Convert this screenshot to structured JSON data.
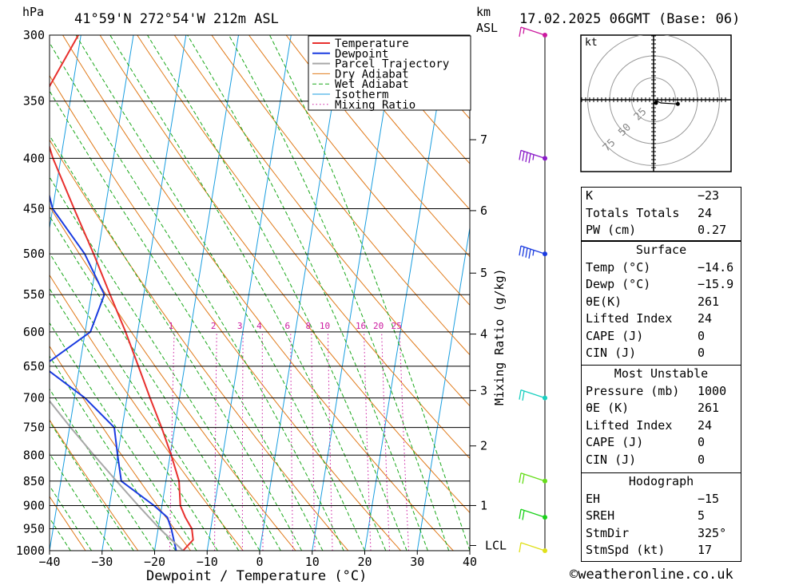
{
  "header": {
    "hpa_label": "hPa",
    "location": "41°59'N  272°54'W  212m  ASL",
    "km_label": "km",
    "asl_label": "ASL",
    "datetime": "17.02.2025  06GMT  (Base: 06)"
  },
  "colors": {
    "temperature": "#e8302e",
    "dewpoint": "#1a3be0",
    "parcel": "#a8a8a8",
    "dry_adiabat": "#e07a1a",
    "wet_adiabat": "#1aa81a",
    "isotherm": "#1a9ee0",
    "mixing_ratio": "#cc1aa0"
  },
  "chart_data": {
    "type": "line",
    "subtype": "skew-T log-P",
    "xlabel": "Dewpoint / Temperature (°C)",
    "ylabel": "hPa",
    "xlim": [
      -40,
      40
    ],
    "ylim": [
      1000,
      300
    ],
    "x_ticks": [
      "−40",
      "−30",
      "−20",
      "−10",
      "0",
      "10",
      "20",
      "30",
      "40"
    ],
    "pressure_levels": [
      300,
      350,
      400,
      450,
      500,
      550,
      600,
      650,
      700,
      750,
      800,
      850,
      900,
      950,
      1000
    ],
    "height_ticks": [
      {
        "label": "7",
        "p": 383
      },
      {
        "label": "6",
        "p": 452
      },
      {
        "label": "5",
        "p": 523
      },
      {
        "label": "4",
        "p": 603
      },
      {
        "label": "3",
        "p": 688
      },
      {
        "label": "2",
        "p": 783
      },
      {
        "label": "1",
        "p": 900
      },
      {
        "label": "LCL",
        "p": 988
      }
    ],
    "height_axis_label": "Mixing Ratio (g/kg)",
    "mixing_ratio_labels": [
      "1",
      "2",
      "3",
      "4",
      "6",
      "8",
      "10",
      "16",
      "20",
      "25"
    ],
    "mixing_ratio_values": [
      1,
      2,
      3,
      4,
      6,
      8,
      10,
      16,
      20,
      25
    ],
    "legend": [
      "Temperature",
      "Dewpoint",
      "Parcel Trajectory",
      "Dry Adiabat",
      "Wet Adiabat",
      "Isotherm",
      "Mixing Ratio"
    ],
    "series": [
      {
        "name": "Temperature",
        "points": [
          {
            "p": 1000,
            "t": -14.6
          },
          {
            "p": 975,
            "t": -13.0
          },
          {
            "p": 950,
            "t": -13.6
          },
          {
            "p": 925,
            "t": -15.2
          },
          {
            "p": 900,
            "t": -16.5
          },
          {
            "p": 850,
            "t": -17.5
          },
          {
            "p": 800,
            "t": -19.8
          },
          {
            "p": 750,
            "t": -22.5
          },
          {
            "p": 700,
            "t": -25.6
          },
          {
            "p": 650,
            "t": -28.8
          },
          {
            "p": 600,
            "t": -32.3
          },
          {
            "p": 550,
            "t": -36.4
          },
          {
            "p": 500,
            "t": -40.8
          },
          {
            "p": 450,
            "t": -45.9
          },
          {
            "p": 400,
            "t": -51.5
          },
          {
            "p": 370,
            "t": -54.5
          },
          {
            "p": 350,
            "t": -55.5
          },
          {
            "p": 330,
            "t": -53.6
          },
          {
            "p": 300,
            "t": -50.5
          }
        ]
      },
      {
        "name": "Dewpoint",
        "points": [
          {
            "p": 1000,
            "t": -15.9
          },
          {
            "p": 950,
            "t": -17.5
          },
          {
            "p": 925,
            "t": -18.6
          },
          {
            "p": 900,
            "t": -21.5
          },
          {
            "p": 850,
            "t": -28.5
          },
          {
            "p": 800,
            "t": -30.0
          },
          {
            "p": 750,
            "t": -31.5
          },
          {
            "p": 700,
            "t": -38.0
          },
          {
            "p": 650,
            "t": -47.0
          },
          {
            "p": 600,
            "t": -39.0
          },
          {
            "p": 550,
            "t": -37.5
          },
          {
            "p": 500,
            "t": -42.5
          },
          {
            "p": 450,
            "t": -50.0
          },
          {
            "p": 400,
            "t": -54.0
          },
          {
            "p": 350,
            "t": -58.0
          },
          {
            "p": 300,
            "t": -66.0
          }
        ]
      },
      {
        "name": "Parcel Trajectory",
        "points": [
          {
            "p": 1000,
            "t": -14.6
          },
          {
            "p": 988,
            "t": -15.8
          },
          {
            "p": 950,
            "t": -19.7
          },
          {
            "p": 900,
            "t": -24.5
          },
          {
            "p": 850,
            "t": -29.4
          },
          {
            "p": 800,
            "t": -34.5
          },
          {
            "p": 750,
            "t": -39.8
          },
          {
            "p": 700,
            "t": -45.2
          },
          {
            "p": 650,
            "t": -51.0
          },
          {
            "p": 600,
            "t": -57.0
          },
          {
            "p": 550,
            "t": -63.3
          },
          {
            "p": 500,
            "t": -70.0
          }
        ]
      }
    ],
    "wind_barbs": [
      {
        "p": 300,
        "speed_kt": 5,
        "color": "#cc1aa0"
      },
      {
        "p": 400,
        "speed_kt": 35,
        "color": "#8a1ac8"
      },
      {
        "p": 500,
        "speed_kt": 35,
        "color": "#1a3be0"
      },
      {
        "p": 700,
        "speed_kt": 20,
        "color": "#1acfc0"
      },
      {
        "p": 850,
        "speed_kt": 20,
        "color": "#66dd1a"
      },
      {
        "p": 925,
        "speed_kt": 20,
        "color": "#1ad11a"
      },
      {
        "p": 1000,
        "speed_kt": 10,
        "color": "#e0e01a"
      }
    ],
    "hodograph": {
      "unit_label": "kt",
      "ring_labels": [
        "25",
        "50",
        "75"
      ],
      "trace": [
        {
          "u": 0,
          "v": 0
        },
        {
          "u": 7,
          "v": -3
        },
        {
          "u": 23,
          "v": -4
        }
      ]
    }
  },
  "indices": {
    "top": [
      {
        "k": "K",
        "v": "−23"
      },
      {
        "k": "Totals Totals",
        "v": "24"
      },
      {
        "k": "PW (cm)",
        "v": "0.27"
      }
    ],
    "surface_title": "Surface",
    "surface": [
      {
        "k": "Temp (°C)",
        "v": "−14.6"
      },
      {
        "k": "Dewp (°C)",
        "v": "−15.9"
      },
      {
        "k": "θE(K)",
        "v": "261"
      },
      {
        "k": "Lifted Index",
        "v": "24"
      },
      {
        "k": "CAPE (J)",
        "v": "0"
      },
      {
        "k": "CIN (J)",
        "v": "0"
      }
    ],
    "unstable_title": "Most Unstable",
    "unstable": [
      {
        "k": "Pressure (mb)",
        "v": "1000"
      },
      {
        "k": "θE (K)",
        "v": "261"
      },
      {
        "k": "Lifted Index",
        "v": "24"
      },
      {
        "k": "CAPE (J)",
        "v": "0"
      },
      {
        "k": "CIN (J)",
        "v": "0"
      }
    ],
    "hodo_title": "Hodograph",
    "hodo": [
      {
        "k": "EH",
        "v": "−15"
      },
      {
        "k": "SREH",
        "v": "5"
      },
      {
        "k": "StmDir",
        "v": "325°"
      },
      {
        "k": "StmSpd (kt)",
        "v": "17"
      }
    ]
  },
  "credit": "©weatheronline.co.uk"
}
